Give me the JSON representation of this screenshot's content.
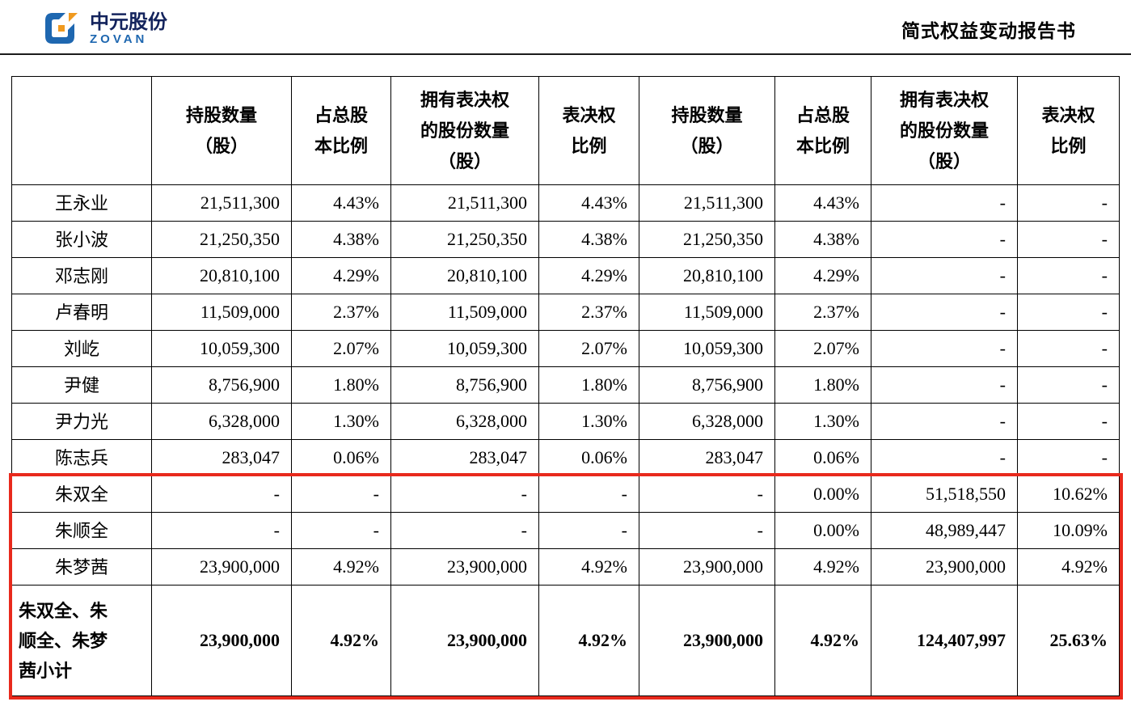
{
  "page": {
    "brand_cn": "中元股份",
    "brand_en": "ZOVAN",
    "doc_title": "简式权益变动报告书",
    "logo_blue": "#1e67b0",
    "logo_orange": "#f09a1f"
  },
  "table": {
    "highlight_color": "#e8291c",
    "header": [
      "",
      "持股数量\n（股）",
      "占总股\n本比例",
      "拥有表决权\n的股份数量\n（股）",
      "表决权\n比例",
      "持股数量\n（股）",
      "占总股\n本比例",
      "拥有表决权\n的股份数量\n（股）",
      "表决权\n比例"
    ],
    "rows": [
      {
        "name": "王永业",
        "values": [
          "21,511,300",
          "4.43%",
          "21,511,300",
          "4.43%",
          "21,511,300",
          "4.43%",
          "-",
          "-"
        ],
        "highlight": false,
        "bold": false
      },
      {
        "name": "张小波",
        "values": [
          "21,250,350",
          "4.38%",
          "21,250,350",
          "4.38%",
          "21,250,350",
          "4.38%",
          "-",
          "-"
        ],
        "highlight": false,
        "bold": false
      },
      {
        "name": "邓志刚",
        "values": [
          "20,810,100",
          "4.29%",
          "20,810,100",
          "4.29%",
          "20,810,100",
          "4.29%",
          "-",
          "-"
        ],
        "highlight": false,
        "bold": false
      },
      {
        "name": "卢春明",
        "values": [
          "11,509,000",
          "2.37%",
          "11,509,000",
          "2.37%",
          "11,509,000",
          "2.37%",
          "-",
          "-"
        ],
        "highlight": false,
        "bold": false
      },
      {
        "name": "刘屹",
        "values": [
          "10,059,300",
          "2.07%",
          "10,059,300",
          "2.07%",
          "10,059,300",
          "2.07%",
          "-",
          "-"
        ],
        "highlight": false,
        "bold": false
      },
      {
        "name": "尹健",
        "values": [
          "8,756,900",
          "1.80%",
          "8,756,900",
          "1.80%",
          "8,756,900",
          "1.80%",
          "-",
          "-"
        ],
        "highlight": false,
        "bold": false
      },
      {
        "name": "尹力光",
        "values": [
          "6,328,000",
          "1.30%",
          "6,328,000",
          "1.30%",
          "6,328,000",
          "1.30%",
          "-",
          "-"
        ],
        "highlight": false,
        "bold": false
      },
      {
        "name": "陈志兵",
        "values": [
          "283,047",
          "0.06%",
          "283,047",
          "0.06%",
          "283,047",
          "0.06%",
          "-",
          "-"
        ],
        "highlight": false,
        "bold": false
      },
      {
        "name": "朱双全",
        "values": [
          "-",
          "-",
          "-",
          "-",
          "-",
          "0.00%",
          "51,518,550",
          "10.62%"
        ],
        "highlight": true,
        "bold": false
      },
      {
        "name": "朱顺全",
        "values": [
          "-",
          "-",
          "-",
          "-",
          "-",
          "0.00%",
          "48,989,447",
          "10.09%"
        ],
        "highlight": true,
        "bold": false
      },
      {
        "name": "朱梦茜",
        "values": [
          "23,900,000",
          "4.92%",
          "23,900,000",
          "4.92%",
          "23,900,000",
          "4.92%",
          "23,900,000",
          "4.92%"
        ],
        "highlight": true,
        "bold": false
      },
      {
        "name": "朱双全、朱\n顺全、朱梦\n茜小计",
        "values": [
          "23,900,000",
          "4.92%",
          "23,900,000",
          "4.92%",
          "23,900,000",
          "4.92%",
          "124,407,997",
          "25.63%"
        ],
        "highlight": true,
        "bold": true
      }
    ]
  }
}
